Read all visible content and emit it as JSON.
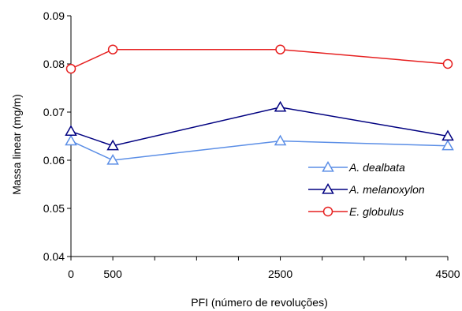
{
  "chart_data": {
    "type": "line",
    "title": "",
    "xlabel": "PFI (número de revoluções)",
    "ylabel": "Massa linear (mg/m)",
    "xlim": [
      0,
      4500
    ],
    "ylim": [
      0.04,
      0.09
    ],
    "x_ticks": [
      "0",
      "500",
      "2500",
      "4500"
    ],
    "x_tick_values": [
      0,
      500,
      2500,
      4500
    ],
    "y_ticks": [
      "0.04",
      "0.05",
      "0.06",
      "0.07",
      "0.08",
      "0.09"
    ],
    "y_tick_values": [
      0.04,
      0.05,
      0.06,
      0.07,
      0.08,
      0.09
    ],
    "grid": false,
    "legend_position": "bottom-right",
    "x": [
      0,
      500,
      2500,
      4500
    ],
    "series": [
      {
        "name": "A. dealbata",
        "values": [
          0.064,
          0.06,
          0.064,
          0.063
        ],
        "color": "#5b8ee6",
        "marker": "triangle"
      },
      {
        "name": "A. melanoxylon",
        "values": [
          0.066,
          0.063,
          0.071,
          0.065
        ],
        "color": "#000080",
        "marker": "triangle"
      },
      {
        "name": "E. globulus",
        "values": [
          0.079,
          0.083,
          0.083,
          0.08
        ],
        "color": "#e62020",
        "marker": "circle"
      }
    ]
  }
}
